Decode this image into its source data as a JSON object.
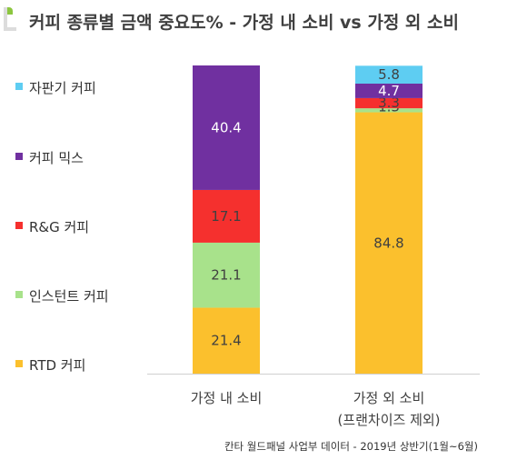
{
  "title": "커피 종류별 금액 중요도% - 가정 내 소비 vs 가정 외 소비",
  "source": "칸타 월드패널 사업부 데이터 - 2019년 상반기(1월~6월)",
  "chart_data": {
    "type": "bar",
    "stacked": true,
    "categories": [
      "가정 내 소비",
      "가정 외 소비\n(프랜차이즈 제외)"
    ],
    "series": [
      {
        "name": "RTD 커피",
        "color": "#fbc02d",
        "values": [
          21.4,
          84.8
        ]
      },
      {
        "name": "인스턴트 커피",
        "color": "#a8e28b",
        "values": [
          21.1,
          1.3
        ]
      },
      {
        "name": "R&G 커피",
        "color": "#f5302e",
        "values": [
          17.1,
          3.3
        ]
      },
      {
        "name": "커피 믹스",
        "color": "#7030a0",
        "values": [
          40.4,
          4.7
        ]
      },
      {
        "name": "자판기 커피",
        "color": "#5ecdf2",
        "values": [
          0,
          5.8
        ]
      }
    ],
    "ylim": [
      0,
      100
    ],
    "legend_position": "left",
    "grid": false
  }
}
